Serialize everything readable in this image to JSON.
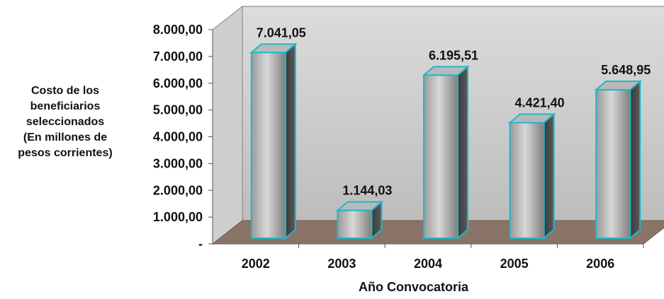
{
  "chart_data": {
    "type": "bar",
    "categories": [
      "2002",
      "2003",
      "2004",
      "2005",
      "2006"
    ],
    "values": [
      7041.05,
      1144.03,
      6195.51,
      4421.4,
      5648.95
    ],
    "data_labels": [
      "7.041,05",
      "1.144,03",
      "6.195,51",
      "4.421,40",
      "5.648,95"
    ],
    "yticks": [
      {
        "value": 0,
        "label": "-"
      },
      {
        "value": 1000,
        "label": "1.000,00"
      },
      {
        "value": 2000,
        "label": "2.000,00"
      },
      {
        "value": 3000,
        "label": "3.000,00"
      },
      {
        "value": 4000,
        "label": "4.000,00"
      },
      {
        "value": 5000,
        "label": "5.000,00"
      },
      {
        "value": 6000,
        "label": "6.000,00"
      },
      {
        "value": 7000,
        "label": "7.000,00"
      },
      {
        "value": 8000,
        "label": "8.000,00"
      }
    ],
    "ylim": [
      0,
      8000
    ],
    "ylabel": "Costo de los\nbeneficiarios\nseleccionados\n(En millones de\npesos corrientes)",
    "xlabel": "Año Convocatoria",
    "grid": false,
    "legend": "none",
    "colors": {
      "bar_front": "#a8a8a8",
      "bar_edge": "#1fb8c8",
      "wall": "#c9c9c9",
      "floor": "#8a7468"
    }
  }
}
